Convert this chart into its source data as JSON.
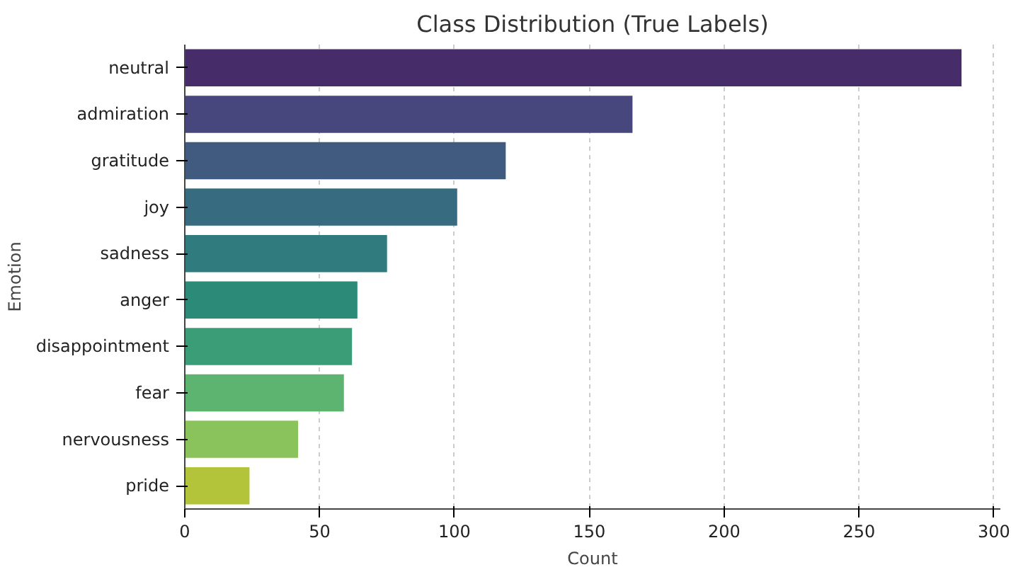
{
  "chart_data": {
    "type": "bar",
    "orientation": "horizontal",
    "title": "Class Distribution (True Labels)",
    "xlabel": "Count",
    "ylabel": "Emotion",
    "categories": [
      "neutral",
      "admiration",
      "gratitude",
      "joy",
      "sadness",
      "anger",
      "disappointment",
      "fear",
      "nervousness",
      "pride"
    ],
    "values": [
      288,
      166,
      119,
      101,
      75,
      64,
      62,
      59,
      42,
      24
    ],
    "colors": [
      "#472c6a",
      "#48477d",
      "#405a80",
      "#376b7f",
      "#2f7b7d",
      "#2c8a79",
      "#3a9d78",
      "#5db470",
      "#8ac25c",
      "#b4c43a"
    ],
    "xlim": [
      0,
      302.4
    ],
    "xticks": [
      0,
      50,
      100,
      150,
      200,
      250,
      300
    ],
    "grid": "x"
  }
}
